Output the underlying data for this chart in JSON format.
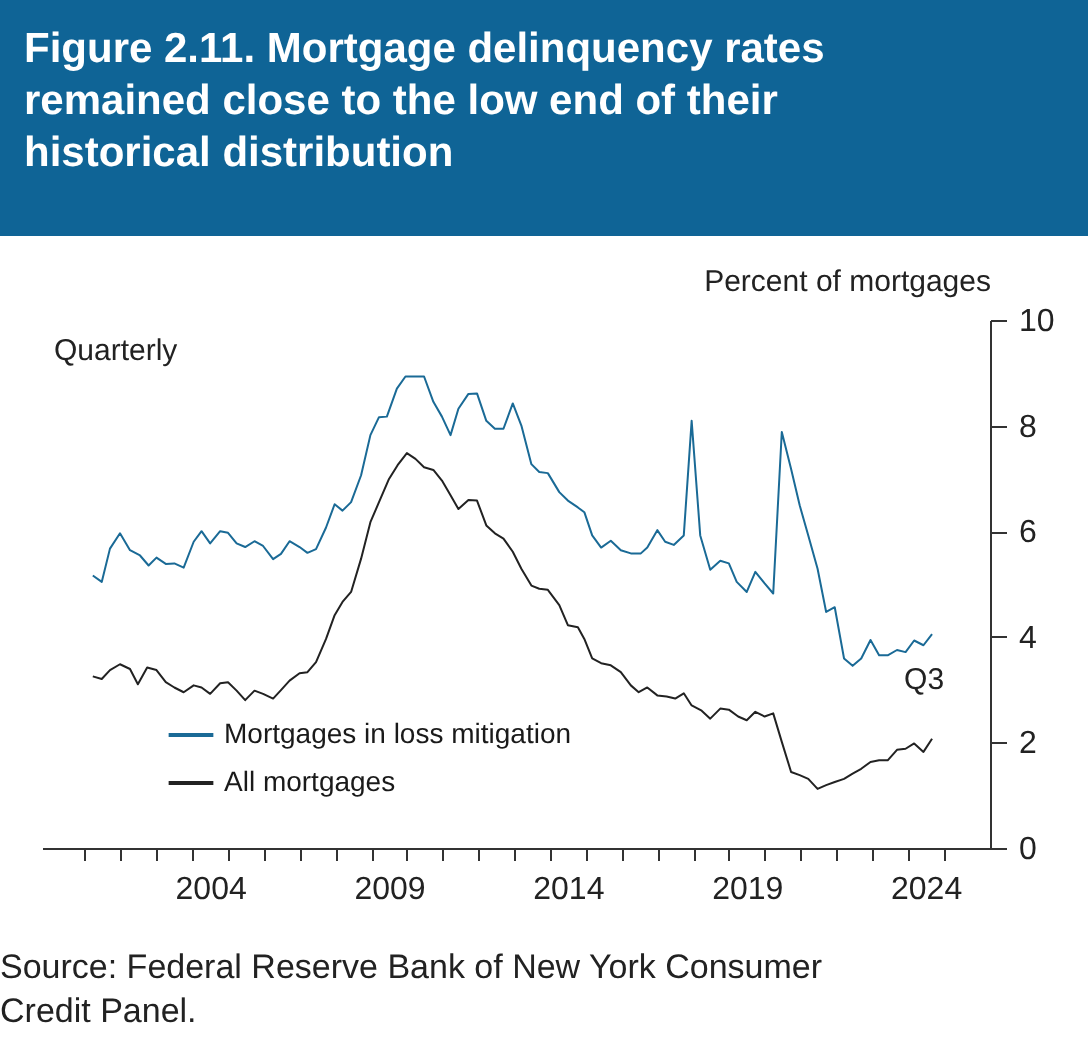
{
  "chart_data": {
    "type": "line",
    "title": "Figure 2.11. Mortgage delinquency rates remained close to the low end of their historical distribution",
    "ylabel": "Percent of mortgages",
    "annotations": [
      "Quarterly",
      {
        "text": "Q3",
        "x": 2024.68,
        "y": 2.07
      },
      "Source: Federal Reserve Bank of New York Consumer Credit Panel."
    ],
    "xlim": [
      1999.8,
      2026.3
    ],
    "ylim": [
      0,
      10
    ],
    "yticks": [
      0,
      2,
      4,
      6,
      8,
      10
    ],
    "xticks": [
      {
        "value": 2001,
        "label": null
      },
      {
        "value": 2002,
        "label": null
      },
      {
        "value": 2003,
        "label": null
      },
      {
        "value": 2004,
        "label": null
      },
      {
        "value": 2005,
        "label": null
      },
      {
        "value": 2006,
        "label": null
      },
      {
        "value": 2007,
        "label": null
      },
      {
        "value": 2008,
        "label": null
      },
      {
        "value": 2009,
        "label": null
      },
      {
        "value": 2010,
        "label": null
      },
      {
        "value": 2011,
        "label": null
      },
      {
        "value": 2012,
        "label": null
      },
      {
        "value": 2013,
        "label": null
      },
      {
        "value": 2014,
        "label": null
      },
      {
        "value": 2015,
        "label": null
      },
      {
        "value": 2016,
        "label": null
      },
      {
        "value": 2017,
        "label": null
      },
      {
        "value": 2018,
        "label": null
      },
      {
        "value": 2019,
        "label": null
      },
      {
        "value": 2020,
        "label": null
      },
      {
        "value": 2021,
        "label": null
      },
      {
        "value": 2022,
        "label": null
      },
      {
        "value": 2023,
        "label": null
      },
      {
        "value": 2024,
        "label": null
      },
      {
        "value": 2025,
        "label": null
      },
      {
        "value": 2004.5,
        "label": "2004"
      },
      {
        "value": 2009.5,
        "label": "2009"
      },
      {
        "value": 2014.5,
        "label": "2014"
      },
      {
        "value": 2019.5,
        "label": "2019"
      },
      {
        "value": 2024.5,
        "label": "2024"
      }
    ],
    "grid": false,
    "legend": "bottom left",
    "series": [
      {
        "name": "Mortgages in loss mitigation",
        "color": "#1a6a96",
        "x": [
          2001.22,
          2001.47,
          2001.7,
          2001.98,
          2002.26,
          2002.54,
          2002.78,
          2003.0,
          2003.26,
          2003.5,
          2003.76,
          2004.04,
          2004.26,
          2004.5,
          2004.78,
          2005.0,
          2005.24,
          2005.48,
          2005.74,
          2005.98,
          2006.26,
          2006.48,
          2006.72,
          2007.0,
          2007.22,
          2007.46,
          2007.74,
          2007.98,
          2008.2,
          2008.44,
          2008.72,
          2008.98,
          2009.22,
          2009.44,
          2009.72,
          2009.96,
          2010.24,
          2010.48,
          2010.74,
          2010.98,
          2011.22,
          2011.44,
          2011.72,
          2011.96,
          2012.22,
          2012.46,
          2012.7,
          2012.96,
          2013.2,
          2013.48,
          2013.7,
          2013.94,
          2014.26,
          2014.5,
          2014.78,
          2014.96,
          2015.18,
          2015.43,
          2015.7,
          2015.98,
          2016.26,
          2016.54,
          2016.72,
          2017.0,
          2017.22,
          2017.46,
          2017.74,
          2017.96,
          2018.2,
          2018.48,
          2018.76,
          2019.0,
          2019.22,
          2019.5,
          2019.74,
          2020.0,
          2020.24,
          2020.48,
          2020.74,
          2020.98,
          2021.22,
          2021.48,
          2021.72,
          2021.96,
          2022.22,
          2022.46,
          2022.7,
          2022.96,
          2023.2,
          2023.44,
          2023.7,
          2023.94,
          2024.18,
          2024.44,
          2024.68
        ],
        "values": [
          5.16,
          5.04,
          5.67,
          5.96,
          5.64,
          5.54,
          5.35,
          5.5,
          5.38,
          5.39,
          5.31,
          5.8,
          6.0,
          5.77,
          6.0,
          5.97,
          5.77,
          5.7,
          5.81,
          5.72,
          5.47,
          5.57,
          5.81,
          5.7,
          5.59,
          5.66,
          6.07,
          6.51,
          6.39,
          6.55,
          7.06,
          7.82,
          8.16,
          8.17,
          8.7,
          8.93,
          8.93,
          8.93,
          8.45,
          8.17,
          7.82,
          8.32,
          8.6,
          8.61,
          8.09,
          7.94,
          7.94,
          8.42,
          8.0,
          7.27,
          7.12,
          7.1,
          6.74,
          6.58,
          6.45,
          6.36,
          5.92,
          5.69,
          5.82,
          5.64,
          5.58,
          5.58,
          5.69,
          6.02,
          5.8,
          5.74,
          5.92,
          8.09,
          5.92,
          5.27,
          5.44,
          5.39,
          5.04,
          4.85,
          5.23,
          5.01,
          4.82,
          7.88,
          7.18,
          6.49,
          5.92,
          5.29,
          4.47,
          4.56,
          3.59,
          3.45,
          3.59,
          3.94,
          3.65,
          3.65,
          3.75,
          3.71,
          3.93,
          3.84,
          4.05
        ]
      },
      {
        "name": "All mortgages",
        "color": "#222222",
        "x": [
          2001.22,
          2001.47,
          2001.7,
          2001.98,
          2002.26,
          2002.48,
          2002.74,
          2003.0,
          2003.26,
          2003.5,
          2003.76,
          2004.04,
          2004.26,
          2004.5,
          2004.78,
          2005.0,
          2005.24,
          2005.48,
          2005.74,
          2005.98,
          2006.26,
          2006.48,
          2006.72,
          2007.0,
          2007.22,
          2007.46,
          2007.74,
          2007.98,
          2008.2,
          2008.44,
          2008.72,
          2008.98,
          2009.22,
          2009.5,
          2009.74,
          2010.0,
          2010.24,
          2010.48,
          2010.74,
          2010.98,
          2011.22,
          2011.44,
          2011.72,
          2011.96,
          2012.22,
          2012.46,
          2012.7,
          2012.96,
          2013.2,
          2013.48,
          2013.7,
          2013.94,
          2014.26,
          2014.5,
          2014.78,
          2014.96,
          2015.18,
          2015.43,
          2015.7,
          2015.98,
          2016.26,
          2016.48,
          2016.72,
          2017.0,
          2017.26,
          2017.5,
          2017.74,
          2017.96,
          2018.24,
          2018.48,
          2018.76,
          2019.0,
          2019.26,
          2019.5,
          2019.74,
          2020.0,
          2020.24,
          2020.48,
          2020.74,
          2020.98,
          2021.22,
          2021.48,
          2021.72,
          2021.96,
          2022.22,
          2022.46,
          2022.7,
          2022.96,
          2023.2,
          2023.44,
          2023.7,
          2023.94,
          2024.18,
          2024.44,
          2024.68
        ],
        "values": [
          3.25,
          3.2,
          3.37,
          3.48,
          3.39,
          3.1,
          3.42,
          3.37,
          3.14,
          3.04,
          2.95,
          3.08,
          3.04,
          2.92,
          3.12,
          3.14,
          2.98,
          2.8,
          2.98,
          2.92,
          2.83,
          2.99,
          3.17,
          3.31,
          3.33,
          3.52,
          3.96,
          4.41,
          4.66,
          4.85,
          5.48,
          6.17,
          6.55,
          6.99,
          7.25,
          7.48,
          7.37,
          7.21,
          7.16,
          6.96,
          6.68,
          6.42,
          6.59,
          6.58,
          6.11,
          5.96,
          5.86,
          5.61,
          5.29,
          4.97,
          4.91,
          4.89,
          4.6,
          4.22,
          4.18,
          3.96,
          3.59,
          3.5,
          3.46,
          3.33,
          3.08,
          2.95,
          3.04,
          2.89,
          2.87,
          2.83,
          2.93,
          2.7,
          2.6,
          2.45,
          2.64,
          2.62,
          2.49,
          2.42,
          2.58,
          2.49,
          2.55,
          2.01,
          1.44,
          1.38,
          1.31,
          1.12,
          1.19,
          1.25,
          1.31,
          1.41,
          1.5,
          1.63,
          1.66,
          1.66,
          1.86,
          1.88,
          1.98,
          1.82,
          2.07
        ]
      }
    ]
  }
}
